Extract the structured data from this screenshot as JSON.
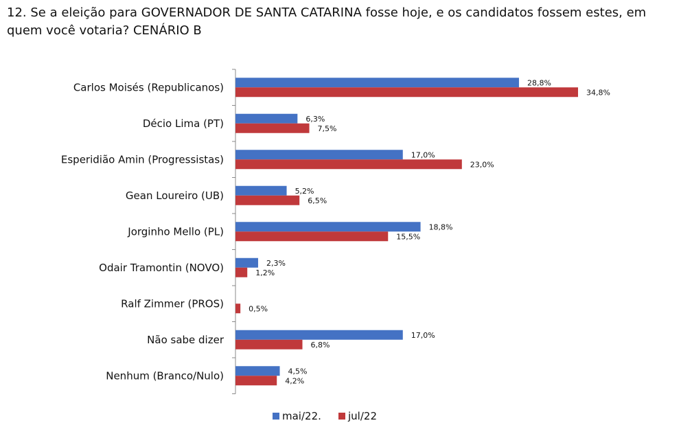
{
  "title": {
    "line1": "12. Se a eleição para GOVERNADOR DE SANTA CATARINA fosse hoje, e os candidatos fossem estes, em",
    "line2": "quem você votaria?   CENÁRIO B"
  },
  "colors": {
    "mai22": "#4472C4",
    "jul22": "#C0393B"
  },
  "chart_data": {
    "type": "bar",
    "orientation": "horizontal",
    "categories": [
      "Carlos Moisés (Republicanos)",
      "Décio Lima (PT)",
      "Esperidião Amin (Progressistas)",
      "Gean Loureiro (UB)",
      "Jorginho Mello (PL)",
      "Odair Tramontin (NOVO)",
      "Ralf Zimmer (PROS)",
      "Não sabe dizer",
      "Nenhum (Branco/Nulo)"
    ],
    "series": [
      {
        "name": "mai/22.",
        "values": [
          28.8,
          6.3,
          17.0,
          5.2,
          18.8,
          2.3,
          null,
          17.0,
          4.5
        ],
        "labels": [
          "28,8%",
          "6,3%",
          "17,0%",
          "5,2%",
          "18,8%",
          "2,3%",
          "",
          "17,0%",
          "4,5%"
        ]
      },
      {
        "name": "jul/22",
        "values": [
          34.8,
          7.5,
          23.0,
          6.5,
          15.5,
          1.2,
          0.5,
          6.8,
          4.2
        ],
        "labels": [
          "34,8%",
          "7,5%",
          "23,0%",
          "6,5%",
          "15,5%",
          "1,2%",
          "0,5%",
          "6,8%",
          "4,2%"
        ]
      }
    ],
    "legend_position": "bottom",
    "grid": false
  }
}
